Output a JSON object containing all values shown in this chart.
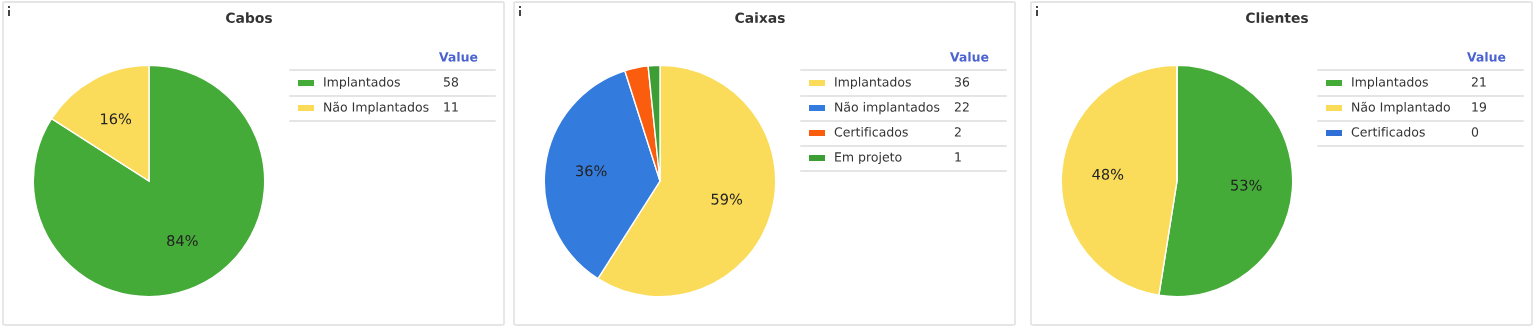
{
  "chart_data": [
    {
      "type": "pie",
      "title": "Cabos",
      "categories": [
        "Implantados",
        "Não Implantados"
      ],
      "values": [
        58,
        11
      ],
      "colors": [
        "#45ab38",
        "#fadc5a"
      ],
      "value_labels": [
        "58",
        "11"
      ],
      "legend": "right",
      "legend_title": "Value",
      "annotations": [
        {
          "text": "84%",
          "x": "Implantados"
        },
        {
          "text": "16%",
          "x": "Não Implantados"
        }
      ]
    },
    {
      "type": "pie",
      "title": "Caixas",
      "categories": [
        "Implantados",
        "Não implantados",
        "Certificados",
        "Em projeto"
      ],
      "values": [
        36,
        22,
        2,
        1
      ],
      "colors": [
        "#fadc5a",
        "#347bde",
        "#f95d0d",
        "#3d9e35"
      ],
      "value_labels": [
        "36",
        "22",
        "2",
        "1"
      ],
      "legend": "right",
      "legend_title": "Value",
      "annotations": [
        {
          "text": "59%",
          "x": "Implantados"
        },
        {
          "text": "36%",
          "x": "Não implantados"
        }
      ]
    },
    {
      "type": "pie",
      "title": "Clientes",
      "categories": [
        "Implantados",
        "Não Implantado",
        "Certificados"
      ],
      "values": [
        21,
        19,
        0
      ],
      "colors": [
        "#45ab38",
        "#fadc5a",
        "#2f6fd6"
      ],
      "value_labels": [
        "21",
        "19",
        "0"
      ],
      "legend": "right",
      "legend_title": "Value",
      "annotations": [
        {
          "text": "53%",
          "x": "Implantados"
        },
        {
          "text": "48%",
          "x": "Não Implantado"
        }
      ]
    }
  ]
}
